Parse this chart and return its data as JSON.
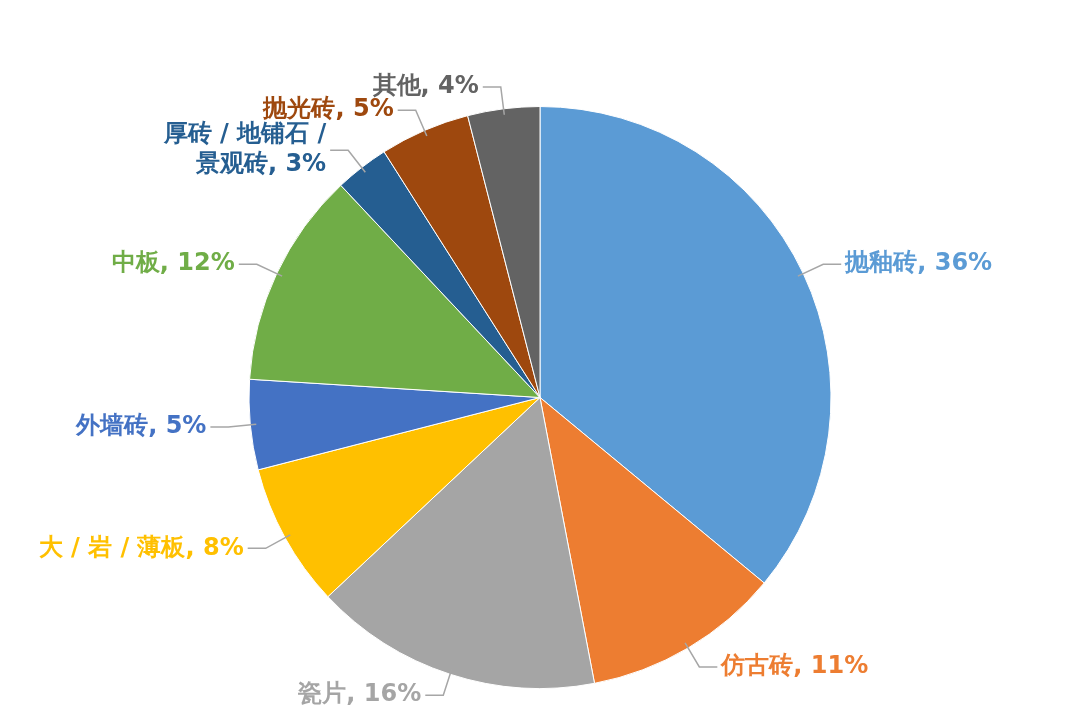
{
  "chart_data": {
    "type": "pie",
    "categories": [
      "抛釉砖",
      "仿古砖",
      "瓷片",
      "大 / 岩 / 薄板",
      "外墙砖",
      "中板",
      "厚砖 / 地铺石 / 景观砖",
      "抛光砖",
      "其他"
    ],
    "values": [
      36,
      11,
      16,
      8,
      5,
      12,
      3,
      5,
      4
    ],
    "value_labels": [
      "36%",
      "11%",
      "16%",
      "8%",
      "5%",
      "12%",
      "3%",
      "5%",
      "4%"
    ],
    "colors": [
      "#5b9bd5",
      "#ed7d31",
      "#a5a5a5",
      "#ffc000",
      "#4472c4",
      "#70ad47",
      "#255e91",
      "#9e480e",
      "#636363"
    ],
    "legend": false
  }
}
